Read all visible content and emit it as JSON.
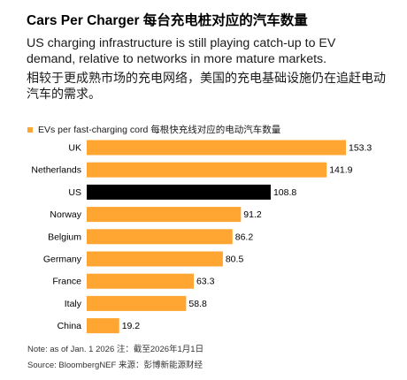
{
  "title": "Cars Per Charger 每台充电桩对应的汽车数量",
  "subtitle_en": "US charging infrastructure is still playing catch-up to EV\ndemand, relative to networks in more mature markets.",
  "subtitle_zh": "相较于更成熟市场的充电网络，美国的充电基础设施仍在追赶电动\n汽车的需求。",
  "legend": {
    "label": "EVs per fast-charging cord 每根快充线对应的电动汽车数量",
    "color": "#FFA531"
  },
  "note": "Note: as of Jan. 1 2026 注：截至2026年1月1日",
  "source": "Source: BloombergNEF 来源：彭博新能源财经",
  "colors": {
    "default_bar": "#FFA531",
    "highlight_bar": "#000000"
  },
  "chart_data": {
    "type": "bar",
    "orientation": "horizontal",
    "categories": [
      "UK",
      "Netherlands",
      "US",
      "Norway",
      "Belgium",
      "Germany",
      "France",
      "Italy",
      "China"
    ],
    "series": [
      {
        "name": "EVs per fast-charging cord 每根快充线对应的电动汽车数量",
        "values": [
          153.3,
          141.9,
          108.8,
          91.2,
          86.2,
          80.5,
          63.3,
          58.8,
          19.2
        ],
        "labels": [
          "153.3",
          "141.9",
          "108.8",
          "91.2",
          "86.2",
          "80.5",
          "63.3",
          "58.8",
          "19.2"
        ]
      }
    ],
    "highlight_category": "US",
    "xlim": [
      0,
      153.3
    ],
    "grid": false,
    "axis_ticks": false,
    "data_labels": true
  }
}
